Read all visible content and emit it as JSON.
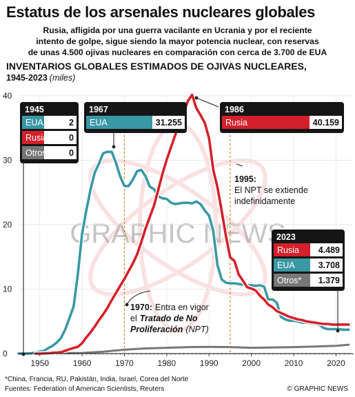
{
  "header": {
    "title": "Estatus de los arsenales nucleares globales",
    "deck": [
      "Rusia, afligida por una guerra vacilante en Ucrania y por el reciente",
      "intento de golpe, sigue siendo la mayor potencia nuclear, con reservas",
      "de unas 4.500 ojivas nucleares en comparación con cerca de 3.700 de EUA"
    ]
  },
  "chart_heading": {
    "title": "INVENTARIOS GLOBALES ESTIMADOS DE OJIVAS NUCLEARES,",
    "period": "1945-2023",
    "unit": "(miles)"
  },
  "colors": {
    "usa": "#3a98a5",
    "russia": "#d4202b",
    "others": "#777777",
    "event_line": "#d98a1e",
    "box_bg": "#151515"
  },
  "chart_data": {
    "type": "line",
    "xlim": [
      1945,
      2024
    ],
    "ylim": [
      0,
      40
    ],
    "x_ticks": [
      1950,
      1960,
      1970,
      1980,
      1990,
      2000,
      2010,
      2020
    ],
    "y_ticks": [
      0,
      10,
      20,
      30,
      40
    ],
    "grid": true,
    "series": [
      {
        "name": "EUA",
        "color": "usa",
        "points": [
          [
            1945,
            0.002
          ],
          [
            1946,
            0.009
          ],
          [
            1947,
            0.013
          ],
          [
            1948,
            0.05
          ],
          [
            1949,
            0.17
          ],
          [
            1950,
            0.3
          ],
          [
            1951,
            0.44
          ],
          [
            1952,
            0.84
          ],
          [
            1953,
            1.2
          ],
          [
            1954,
            1.7
          ],
          [
            1955,
            2.4
          ],
          [
            1956,
            3.7
          ],
          [
            1957,
            5.5
          ],
          [
            1958,
            7.3
          ],
          [
            1959,
            12.3
          ],
          [
            1960,
            18.6
          ],
          [
            1961,
            22.2
          ],
          [
            1962,
            25.5
          ],
          [
            1963,
            28.1
          ],
          [
            1964,
            29.5
          ],
          [
            1965,
            31.1
          ],
          [
            1966,
            31.3
          ],
          [
            1967,
            31.3
          ],
          [
            1968,
            29.6
          ],
          [
            1969,
            27.5
          ],
          [
            1970,
            26.0
          ],
          [
            1971,
            26.0
          ],
          [
            1972,
            27.0
          ],
          [
            1973,
            28.3
          ],
          [
            1974,
            28.5
          ],
          [
            1975,
            27.5
          ],
          [
            1976,
            25.9
          ],
          [
            1977,
            25.5
          ],
          [
            1978,
            24.4
          ],
          [
            1979,
            24.1
          ],
          [
            1980,
            24.0
          ],
          [
            1981,
            23.4
          ],
          [
            1982,
            23.2
          ],
          [
            1983,
            23.3
          ],
          [
            1984,
            23.4
          ],
          [
            1985,
            23.4
          ],
          [
            1986,
            23.3
          ],
          [
            1987,
            23.6
          ],
          [
            1988,
            23.2
          ],
          [
            1989,
            22.2
          ],
          [
            1990,
            21.4
          ],
          [
            1991,
            19.0
          ],
          [
            1992,
            13.7
          ],
          [
            1993,
            11.5
          ],
          [
            1994,
            11.0
          ],
          [
            1995,
            10.9
          ],
          [
            1996,
            10.9
          ],
          [
            1997,
            10.8
          ],
          [
            1998,
            10.7
          ],
          [
            1999,
            10.6
          ],
          [
            2000,
            10.6
          ],
          [
            2001,
            10.5
          ],
          [
            2002,
            10.6
          ],
          [
            2003,
            10.4
          ],
          [
            2004,
            8.4
          ],
          [
            2005,
            8.4
          ],
          [
            2006,
            7.9
          ],
          [
            2007,
            5.7
          ],
          [
            2008,
            5.3
          ],
          [
            2009,
            5.1
          ],
          [
            2010,
            5.1
          ],
          [
            2011,
            5.0
          ],
          [
            2012,
            4.8
          ],
          [
            2013,
            4.8
          ],
          [
            2014,
            4.7
          ],
          [
            2015,
            4.6
          ],
          [
            2016,
            4.5
          ],
          [
            2017,
            4.0
          ],
          [
            2018,
            3.8
          ],
          [
            2019,
            3.8
          ],
          [
            2020,
            3.8
          ],
          [
            2021,
            3.75
          ],
          [
            2022,
            3.7
          ],
          [
            2023,
            3.708
          ]
        ]
      },
      {
        "name": "Rusia",
        "color": "russia",
        "points": [
          [
            1949,
            0.001
          ],
          [
            1950,
            0.005
          ],
          [
            1951,
            0.025
          ],
          [
            1952,
            0.05
          ],
          [
            1953,
            0.12
          ],
          [
            1954,
            0.15
          ],
          [
            1955,
            0.2
          ],
          [
            1956,
            0.43
          ],
          [
            1957,
            0.66
          ],
          [
            1958,
            0.87
          ],
          [
            1959,
            1.06
          ],
          [
            1960,
            1.6
          ],
          [
            1961,
            2.5
          ],
          [
            1962,
            3.3
          ],
          [
            1963,
            4.2
          ],
          [
            1964,
            5.2
          ],
          [
            1965,
            6.1
          ],
          [
            1966,
            7.1
          ],
          [
            1967,
            8.3
          ],
          [
            1968,
            9.4
          ],
          [
            1969,
            10.5
          ],
          [
            1970,
            11.6
          ],
          [
            1971,
            12.8
          ],
          [
            1972,
            14.0
          ],
          [
            1973,
            15.4
          ],
          [
            1974,
            17.3
          ],
          [
            1975,
            19.4
          ],
          [
            1976,
            21.2
          ],
          [
            1977,
            23.0
          ],
          [
            1978,
            25.4
          ],
          [
            1979,
            27.9
          ],
          [
            1980,
            30.1
          ],
          [
            1981,
            32.0
          ],
          [
            1982,
            33.9
          ],
          [
            1983,
            35.8
          ],
          [
            1984,
            37.4
          ],
          [
            1985,
            39.2
          ],
          [
            1986,
            40.159
          ],
          [
            1987,
            38.1
          ],
          [
            1988,
            37.0
          ],
          [
            1989,
            35.8
          ],
          [
            1990,
            33.4
          ],
          [
            1991,
            28.5
          ],
          [
            1992,
            25.8
          ],
          [
            1993,
            22.1
          ],
          [
            1994,
            18.2
          ],
          [
            1995,
            14.9
          ],
          [
            1996,
            14.4
          ],
          [
            1997,
            12.3
          ],
          [
            1998,
            11.3
          ],
          [
            1999,
            10.3
          ],
          [
            2000,
            10.1
          ],
          [
            2001,
            9.8
          ],
          [
            2002,
            9.0
          ],
          [
            2003,
            8.4
          ],
          [
            2004,
            7.6
          ],
          [
            2005,
            7.2
          ],
          [
            2006,
            6.6
          ],
          [
            2007,
            6.3
          ],
          [
            2008,
            6.0
          ],
          [
            2009,
            5.7
          ],
          [
            2010,
            5.5
          ],
          [
            2011,
            5.3
          ],
          [
            2012,
            5.2
          ],
          [
            2013,
            5.0
          ],
          [
            2014,
            4.9
          ],
          [
            2015,
            4.8
          ],
          [
            2016,
            4.7
          ],
          [
            2017,
            4.6
          ],
          [
            2018,
            4.6
          ],
          [
            2019,
            4.5
          ],
          [
            2020,
            4.5
          ],
          [
            2021,
            4.5
          ],
          [
            2022,
            4.5
          ],
          [
            2023,
            4.489
          ]
        ]
      },
      {
        "name": "Otros*",
        "color": "others",
        "points": [
          [
            1945,
            0
          ],
          [
            1952,
            0
          ],
          [
            1955,
            0.05
          ],
          [
            1960,
            0.1
          ],
          [
            1965,
            0.3
          ],
          [
            1970,
            0.6
          ],
          [
            1975,
            0.8
          ],
          [
            1980,
            0.9
          ],
          [
            1985,
            1.0
          ],
          [
            1990,
            1.05
          ],
          [
            1995,
            1.0
          ],
          [
            2000,
            0.9
          ],
          [
            2005,
            0.95
          ],
          [
            2010,
            1.0
          ],
          [
            2015,
            1.1
          ],
          [
            2020,
            1.2
          ],
          [
            2023,
            1.379
          ]
        ]
      }
    ],
    "event_lines": [
      1970,
      1995
    ],
    "value_boxes": [
      {
        "year": "1945",
        "rows": [
          {
            "label": "EUA",
            "value": "2",
            "color": "usa"
          },
          {
            "label": "Rusia",
            "value": "0",
            "color": "russia"
          },
          {
            "label": "Otros*",
            "value": "0",
            "color": "others"
          }
        ]
      },
      {
        "year": "1967",
        "rows": [
          {
            "label": "EUA",
            "value": "31.255",
            "color": "usa"
          }
        ]
      },
      {
        "year": "1986",
        "rows": [
          {
            "label": "Rusia",
            "value": "40.159",
            "color": "russia"
          }
        ]
      },
      {
        "year": "2023",
        "rows": [
          {
            "label": "Rusia",
            "value": "4.489",
            "color": "russia"
          },
          {
            "label": "EUA",
            "value": "3.708",
            "color": "usa"
          },
          {
            "label": "Otros*",
            "value": "1.379",
            "color": "others"
          }
        ]
      }
    ],
    "annotations": {
      "npt_1995": {
        "year": "1995:",
        "lines": [
          "El NPT se extiende",
          "indefinidamente"
        ]
      },
      "npt_1970": {
        "year": "1970:",
        "line1_rest": "Entra en vigor",
        "line2_pre": "el",
        "line2_em": "Tratado de No",
        "line3_em": "Proliferación",
        "line3_post": "(NPT)"
      }
    },
    "watermark": "GRAPHIC NEWS"
  },
  "footer": {
    "footnote": "*China, Francia, RU, Pakistán, India, Israel, Corea del Norte",
    "sources": "Fuentes: Federation of American Scientists, Reuters",
    "credit": "© GRAPHIC NEWS"
  }
}
